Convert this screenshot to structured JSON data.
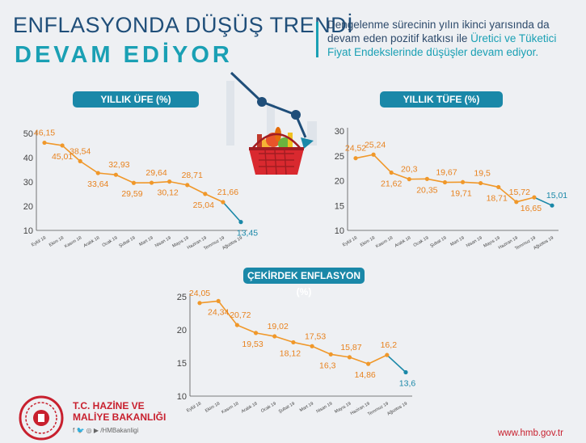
{
  "header": {
    "title_line1": "ENFLASYONDA DÜŞÜŞ TRENDİ",
    "title_line2": "DEVAM EDİYOR",
    "intro_part1": "Dengelenme sürecinin yılın ikinci yarısında da devam eden pozitif katkısı ile ",
    "intro_highlight": "Üretici ve Tüketici Fiyat Endekslerinde düşüşler devam ediyor."
  },
  "footer": {
    "org_line1": "T.C. HAZİNE VE",
    "org_line2": "MALİYE BAKANLIĞI",
    "social": "f 🐦 ◎ ▶ /HMBakanligi",
    "website": "www.hmb.gov.tr"
  },
  "colors": {
    "orange": "#f0982a",
    "teal": "#1a88a8",
    "label_orange": "#e8821e"
  },
  "chart_data": [
    {
      "type": "line",
      "title": "YILLIK ÜFE (%)",
      "categories": [
        "Eylül 18",
        "Ekim 18",
        "Kasım 18",
        "Aralık 18",
        "Ocak 19",
        "Şubat 19",
        "Mart 19",
        "Nisan 19",
        "Mayıs 19",
        "Haziran 19",
        "Temmuz 19",
        "Ağustos 19"
      ],
      "values": [
        46.15,
        45.01,
        38.54,
        33.64,
        32.93,
        29.59,
        29.64,
        30.12,
        28.71,
        25.04,
        21.66,
        13.45
      ],
      "value_labels": [
        "46,15",
        "45,01",
        "38,54",
        "33,64",
        "32,93",
        "29,59",
        "29,64",
        "30,12",
        "28,71",
        "25,04",
        "21,66",
        "13,45"
      ],
      "yticks": [
        10,
        20,
        30,
        40,
        50
      ],
      "ylim": [
        10,
        50
      ],
      "grid": false
    },
    {
      "type": "line",
      "title": "YILLIK TÜFE (%)",
      "categories": [
        "Eylül 18",
        "Ekim 18",
        "Kasım 18",
        "Aralık 18",
        "Ocak 19",
        "Şubat 19",
        "Mart 19",
        "Nisan 19",
        "Mayıs 19",
        "Haziran 19",
        "Temmuz 19",
        "Ağustos 19"
      ],
      "values": [
        24.52,
        25.24,
        21.62,
        20.3,
        20.35,
        19.67,
        19.71,
        19.5,
        18.71,
        15.72,
        16.65,
        15.01
      ],
      "value_labels": [
        "24,52",
        "25,24",
        "21,62",
        "20,3",
        "20,35",
        "19,67",
        "19,71",
        "19,5",
        "18,71",
        "15,72",
        "16,65",
        "15,01"
      ],
      "yticks": [
        10,
        15,
        20,
        25,
        30
      ],
      "ylim": [
        10,
        30
      ],
      "grid": false
    },
    {
      "type": "line",
      "title": "ÇEKİRDEK ENFLASYON (%)",
      "categories": [
        "Eylül 18",
        "Ekim 18",
        "Kasım 18",
        "Aralık 18",
        "Ocak 19",
        "Şubat 19",
        "Mart 19",
        "Nisan 19",
        "Mayıs 19",
        "Haziran 19",
        "Temmuz 19",
        "Ağustos 19"
      ],
      "values": [
        24.05,
        24.34,
        20.72,
        19.53,
        19.02,
        18.12,
        17.53,
        16.3,
        15.87,
        14.86,
        16.2,
        13.6
      ],
      "value_labels": [
        "24,05",
        "24,34",
        "20,72",
        "19,53",
        "19,02",
        "18,12",
        "17,53",
        "16,3",
        "15,87",
        "14,86",
        "16,2",
        "13,6"
      ],
      "yticks": [
        10,
        15,
        20,
        25
      ],
      "ylim": [
        10,
        25
      ],
      "grid": false
    }
  ]
}
